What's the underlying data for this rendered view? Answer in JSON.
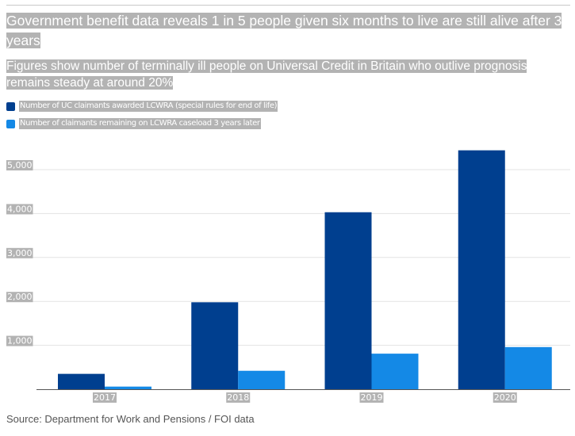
{
  "title": "Government benefit data reveals 1 in 5 people given six months to live are still alive after 3 years",
  "subtitle": "Figures show number of terminally ill people on Universal Credit in Britain who outlive prognosis remains steady at around 20%",
  "source": "Source: Department for Work and Pensions / FOI data",
  "chart_data": {
    "type": "bar",
    "categories": [
      "2017",
      "2018",
      "2019",
      "2020"
    ],
    "series": [
      {
        "name": "Number of UC claimants awarded LCWRA (special rules for end of life)",
        "color": "#003f8f",
        "values": [
          350,
          1980,
          4030,
          5440
        ]
      },
      {
        "name": "Number of claimants remaining on LCWRA caseload 3 years later",
        "color": "#1489e6",
        "values": [
          60,
          420,
          810,
          960
        ]
      }
    ],
    "yticks": [
      "1,000",
      "2,000",
      "3,000",
      "4,000",
      "5,000"
    ],
    "ytick_values": [
      1000,
      2000,
      3000,
      4000,
      5000
    ],
    "ylim": [
      0,
      5500
    ],
    "grid": true,
    "legend_position": "top-left"
  }
}
